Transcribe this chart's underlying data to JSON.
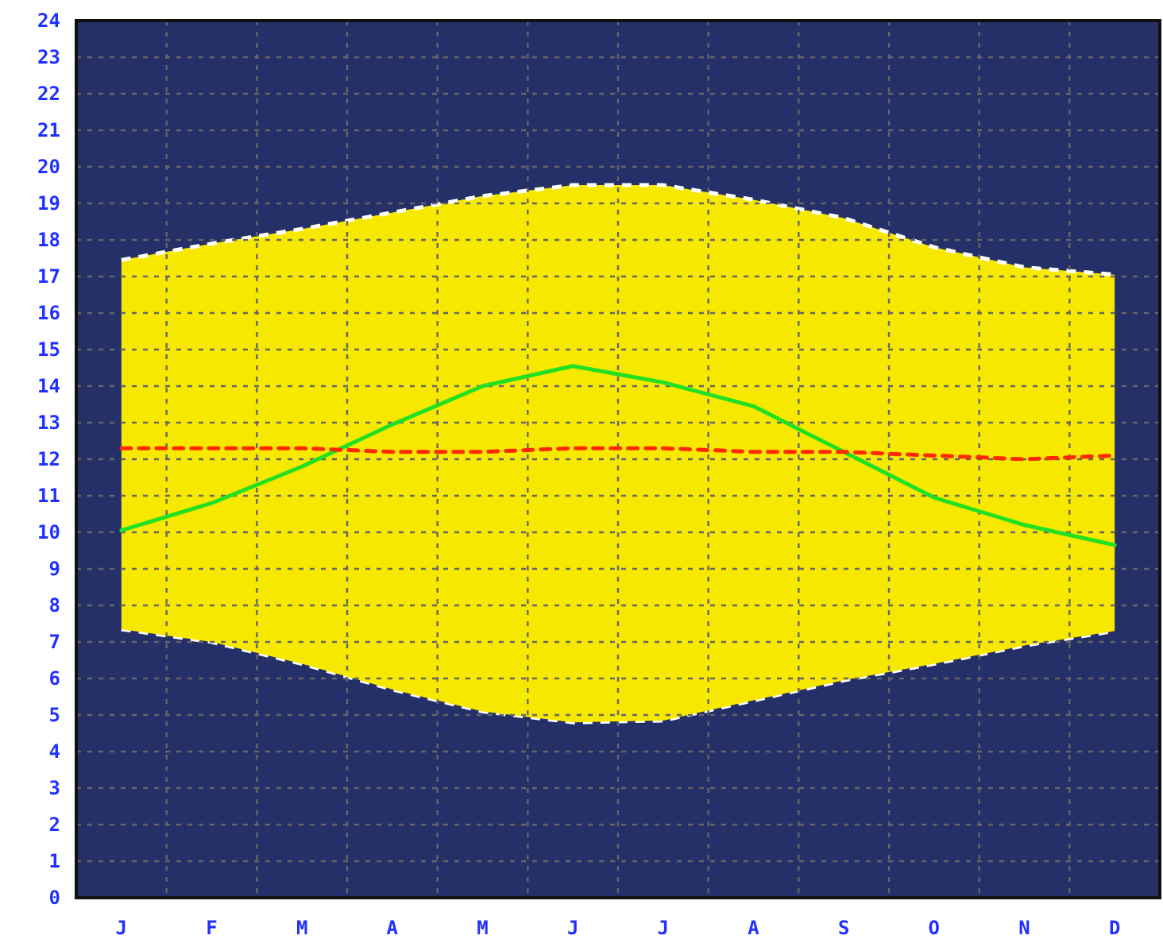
{
  "chart_data": {
    "type": "line",
    "categories": [
      "J",
      "F",
      "M",
      "A",
      "M",
      "J",
      "J",
      "A",
      "S",
      "O",
      "N",
      "D"
    ],
    "ylim": [
      0,
      24
    ],
    "yticks": [
      0,
      1,
      2,
      3,
      4,
      5,
      6,
      7,
      8,
      9,
      10,
      11,
      12,
      13,
      14,
      15,
      16,
      17,
      18,
      19,
      20,
      21,
      22,
      23,
      24
    ],
    "grid": true,
    "stacked": true,
    "series": [
      {
        "type": "area",
        "color": "#253068",
        "line_style": "dashed",
        "values": [
          7.35,
          7.0,
          6.4,
          5.7,
          5.1,
          4.8,
          4.85,
          5.4,
          5.95,
          6.4,
          6.9,
          7.3
        ]
      },
      {
        "type": "area",
        "color": "#f7e800",
        "line_style": "dashed",
        "values": [
          10.1,
          10.9,
          11.9,
          13.05,
          14.1,
          14.7,
          14.65,
          13.7,
          12.65,
          11.4,
          10.35,
          9.75
        ]
      },
      {
        "color": "#22e022",
        "line_style": "solid",
        "values": [
          10.05,
          10.8,
          11.8,
          12.95,
          14.0,
          14.55,
          14.1,
          13.45,
          12.2,
          10.95,
          10.2,
          9.65
        ]
      },
      {
        "color": "#ff2a00",
        "line_style": "dashed",
        "values": [
          12.3,
          12.3,
          12.3,
          12.2,
          12.2,
          12.3,
          12.3,
          12.2,
          12.2,
          12.1,
          12.0,
          12.1
        ]
      }
    ]
  }
}
